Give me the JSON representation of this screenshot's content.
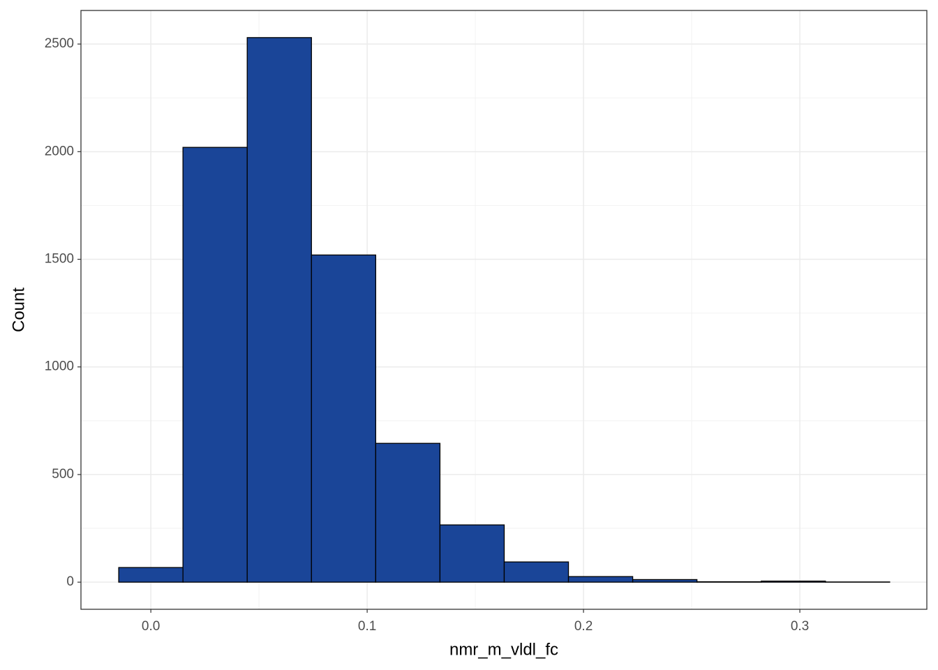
{
  "chart_data": {
    "type": "histogram",
    "x_label": "nmr_m_vldl_fc",
    "y_label": "Count",
    "bins": [
      -0.01485,
      0.01485,
      0.04455,
      0.07425,
      0.10395,
      0.13365,
      0.16335,
      0.19305,
      0.22275,
      0.25245,
      0.28215,
      0.31185,
      0.34155
    ],
    "values": [
      68,
      2020,
      2530,
      1520,
      645,
      266,
      94,
      26,
      12,
      2,
      5,
      1
    ],
    "color": "#1a4598",
    "edge_color": "#000000",
    "xlim": [
      -0.0323,
      0.3587
    ],
    "ylim": [
      -126,
      2656
    ],
    "xticks": [
      {
        "value": 0,
        "label": "0.0"
      },
      0.1,
      0.2,
      0.3
    ],
    "yticks": [
      0,
      500,
      1000,
      1500,
      2000,
      2500
    ],
    "grid": true,
    "minor_grid": true
  }
}
